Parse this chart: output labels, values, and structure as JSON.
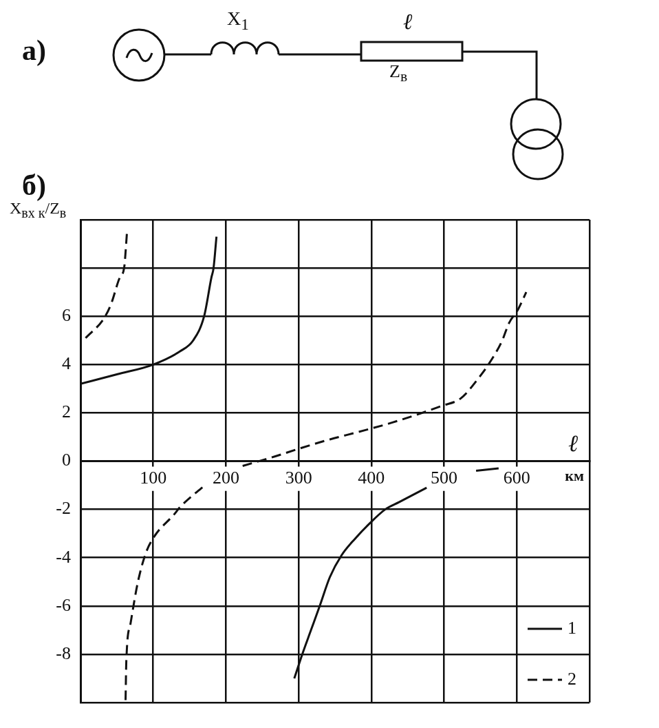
{
  "chart_data": {
    "type": "line",
    "title": "б)",
    "xlabel": "ℓ",
    "ylabel": "X$_{вх к}$/Z$_{в}$",
    "series": [
      {
        "name": "1",
        "color": "#111111",
        "line_style": "solid",
        "x": [
          0,
          51,
          100,
          137,
          155,
          170,
          180,
          183,
          187,
          240,
          294,
          305,
          317,
          329,
          343,
          359,
          378,
          397,
          419,
          438,
          457,
          476,
          510,
          544,
          575
        ],
        "values": [
          3.2,
          3.6,
          4.0,
          4.55,
          5.0,
          6.0,
          7.6,
          8.0,
          9.3,
          null,
          -9.0,
          -8.0,
          -7.0,
          -6.0,
          -4.8,
          -3.9,
          -3.2,
          -2.6,
          -2.0,
          -1.7,
          -1.4,
          -1.1,
          null,
          -0.4,
          -0.3
        ]
      },
      {
        "name": "2",
        "color": "#111111",
        "line_style": "dashed",
        "x": [
          7,
          32,
          42,
          54,
          60,
          64,
          63,
          62,
          63,
          69,
          79,
          90,
          102,
          129,
          137,
          171,
          200,
          223,
          268,
          299,
          343,
          381,
          429,
          498,
          523,
          549,
          561,
          580,
          589,
          602,
          613
        ],
        "values": [
          5.1,
          5.9,
          6.5,
          7.6,
          8.0,
          9.5,
          null,
          -9.9,
          -8.3,
          -6.7,
          -5.0,
          -3.8,
          -3.1,
          -2.2,
          -1.9,
          -1.0,
          null,
          -0.2,
          0.2,
          0.5,
          0.9,
          1.2,
          1.6,
          2.3,
          2.6,
          3.5,
          4.0,
          5.0,
          5.7,
          6.3,
          7.0
        ]
      }
    ],
    "xlim": [
      0,
      700
    ],
    "xticks": [
      {
        "value": 0,
        "label": null
      },
      100,
      200,
      300,
      400,
      500,
      600,
      {
        "value": 700,
        "label": null
      }
    ],
    "ylim": [
      -10,
      10
    ],
    "yticks": [
      {
        "value": -10,
        "label": null
      },
      -8,
      -6,
      -4,
      -2,
      0,
      2,
      4,
      6,
      {
        "value": 8,
        "label": null
      },
      {
        "value": 10,
        "label": null
      }
    ],
    "grid": true,
    "legend": "bottom right",
    "marker": "none",
    "annotations": [
      "а)",
      "X$_{1}$",
      "ℓ",
      "Z$_{в}$",
      "км"
    ]
  }
}
